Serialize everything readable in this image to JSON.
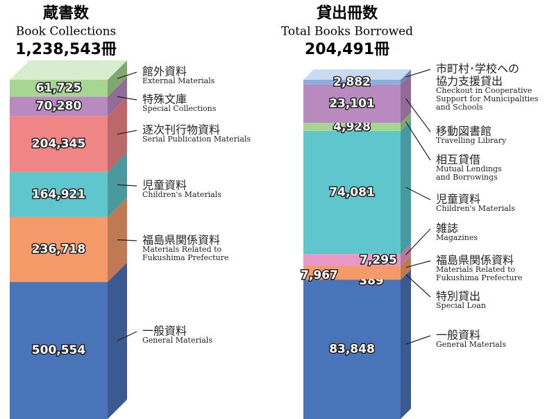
{
  "chart_data": [
    {
      "type": "stacked-bar-3d",
      "title": "蔵書数",
      "subtitle": "Book Collections",
      "total": {
        "value": 1238543,
        "label": "1,238,543冊"
      },
      "series": [
        {
          "name": "一般資料",
          "name_en": [
            "General Materials"
          ],
          "color": "#4a74ba",
          "values": [
            500554
          ],
          "value_labels": [
            "500,554"
          ]
        },
        {
          "name": "福島県関係資料",
          "name_en": [
            "Materials Related to",
            "Fukushima Prefecture"
          ],
          "color": "#f59b6a",
          "values": [
            236718
          ],
          "value_labels": [
            "236,718"
          ]
        },
        {
          "name": "児童資料",
          "name_en": [
            "Children's Materials"
          ],
          "color": "#5ec6cc",
          "values": [
            164921
          ],
          "value_labels": [
            "164,921"
          ]
        },
        {
          "name": "逐次刊行物資料",
          "name_en": [
            "Serial Publication Materials"
          ],
          "color": "#f08585",
          "values": [
            204345
          ],
          "value_labels": [
            "204,345"
          ]
        },
        {
          "name": "特殊文庫",
          "name_en": [
            "Special Collections"
          ],
          "color": "#b88ac0",
          "values": [
            70280
          ],
          "value_labels": [
            "70,280"
          ]
        },
        {
          "name": "館外資料",
          "name_en": [
            "External Materials"
          ],
          "color": "#a6d690",
          "values": [
            61725
          ],
          "value_labels": [
            "61,725"
          ]
        }
      ]
    },
    {
      "type": "stacked-bar-3d",
      "title": "貸出冊数",
      "subtitle": "Total Books Borrowed",
      "total": {
        "value": 204491,
        "label": "204,491冊"
      },
      "series": [
        {
          "name": "一般資料",
          "name_en": [
            "General Materials"
          ],
          "color": "#4a74ba",
          "values": [
            83848
          ],
          "value_labels": [
            "83,848"
          ]
        },
        {
          "name": "特別貸出",
          "name_en": [
            "Special Loan"
          ],
          "color": "#e07f45",
          "values": [
            389
          ],
          "value_labels": [
            "389"
          ]
        },
        {
          "name": "福島県関係資料",
          "name_en": [
            "Materials Related to",
            "Fukushima Prefecture"
          ],
          "color": "#f59b6a",
          "values": [
            7967
          ],
          "value_labels": [
            "7,967"
          ]
        },
        {
          "name": "雑誌",
          "name_en": [
            "Magazines"
          ],
          "color": "#e89ac4",
          "values": [
            7295
          ],
          "value_labels": [
            "7,295"
          ]
        },
        {
          "name": "児童資料",
          "name_en": [
            "Children's Materials"
          ],
          "color": "#5ec6cc",
          "values": [
            74081
          ],
          "value_labels": [
            "74,081"
          ]
        },
        {
          "name": "相互貸借",
          "name_en": [
            "Mutual Lendings",
            "and Borrowings"
          ],
          "color": "#a6d690",
          "values": [
            4928
          ],
          "value_labels": [
            "4,928"
          ]
        },
        {
          "name": "移動図書館",
          "name_en": [
            "Travelling Library"
          ],
          "color": "#b88ac0",
          "values": [
            23101
          ],
          "value_labels": [
            "23,101"
          ]
        },
        {
          "name": [
            "市町村･学校への",
            "協力支援貸出"
          ],
          "name_en": [
            "Checkout in Cooperative",
            "Support for Municipalities",
            "and Schools"
          ],
          "color": "#8aaee0",
          "values": [
            2882
          ],
          "value_labels": [
            "2,882"
          ]
        }
      ]
    }
  ]
}
